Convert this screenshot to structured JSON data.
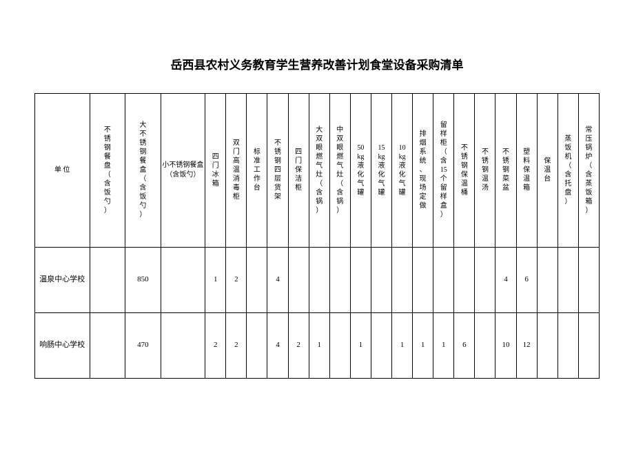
{
  "title": "岳西县农村义务教育学生营养改善计划食堂设备采购清单",
  "table": {
    "columns": [
      "单 位",
      "不锈钢餐盘（含饭勺）",
      "大不锈钢餐盒（含饭勺）",
      "小不锈钢餐盒（含饭勺）",
      "四门冰箱",
      "双门高温消毒柜",
      "标准工作台",
      "不锈钢四层货架",
      "四门保洁柜",
      "大双眼燃气灶（含锅）",
      "中双眼燃气灶（含锅）",
      "50kg液化气罐",
      "15kg液化气罐",
      "10kg液化气罐",
      "排烟系统、现场定做",
      "留样柜（含15个留样盒）",
      "不锈钢保温桶",
      "不锈钢温汤",
      "不锈钢菜盆",
      "塑料保温箱",
      "保温台",
      "蒸饭机（含托盘）",
      "常压锅炉（含蒸饭箱）"
    ],
    "rows": [
      {
        "unit": "温泉中心学校",
        "values": [
          "",
          "850",
          "",
          "1",
          "2",
          "",
          "4",
          "",
          "",
          "",
          "",
          "",
          "",
          "",
          "",
          "",
          "",
          "4",
          "6",
          "",
          "",
          ""
        ]
      },
      {
        "unit": "响肠中心学校",
        "values": [
          "",
          "470",
          "",
          "2",
          "2",
          "",
          "4",
          "2",
          "1",
          "",
          "1",
          "",
          "1",
          "1",
          "1",
          "6",
          "",
          "10",
          "12",
          "",
          "",
          ""
        ]
      }
    ]
  },
  "style": {
    "page_bg": "#ffffff",
    "border_color": "#000000",
    "title_fontsize": 17,
    "header_fontsize": 10,
    "cell_fontsize": 11
  }
}
